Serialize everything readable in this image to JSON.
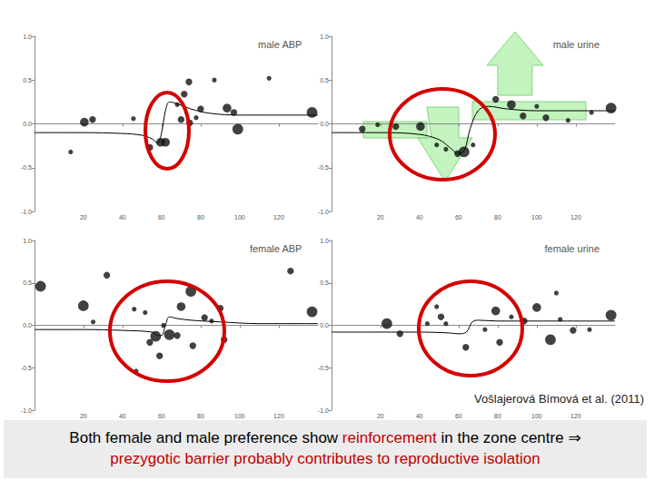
{
  "chart_data": [
    {
      "type": "scatter",
      "title": "male ABP",
      "xlim": [
        -5,
        140
      ],
      "xticks": [
        20,
        40,
        60,
        80,
        100,
        120
      ],
      "ylim": [
        -1,
        1
      ],
      "yticks": [
        {
          "value": -1,
          "label": "-1.0"
        },
        -0.5,
        {
          "value": 0,
          "label": "0.0"
        },
        0.5,
        {
          "value": 1,
          "label": "1.0"
        }
      ],
      "grid": false,
      "series": [
        {
          "type": "scatter",
          "color": "#111111",
          "x": [
            20.5,
            24.7,
            13.5,
            45.6,
            54,
            59.5,
            62,
            71.6,
            74,
            68,
            70,
            80,
            87,
            93.5,
            99,
            97,
            115,
            137,
            77.7,
            74.4
          ],
          "values": [
            0.02,
            0.05,
            -0.32,
            0.06,
            -0.27,
            -0.21,
            -0.21,
            0.34,
            0.48,
            0.22,
            0.05,
            0.17,
            0.5,
            0.18,
            -0.06,
            0.13,
            0.52,
            0.13,
            0.07,
            0.01
          ],
          "sizes": [
            3,
            2,
            1,
            1,
            2,
            3,
            3,
            2,
            2,
            1,
            2,
            2,
            1,
            3,
            4,
            2,
            1,
            4,
            1,
            2
          ]
        },
        {
          "type": "line",
          "color": "#000000",
          "x": [
            -5,
            20,
            40,
            50,
            55,
            58,
            60,
            62,
            64,
            68,
            75,
            85,
            100,
            115,
            140
          ],
          "values": [
            -0.1,
            -0.1,
            -0.11,
            -0.13,
            -0.17,
            -0.22,
            -0.1,
            0.15,
            0.25,
            0.23,
            0.17,
            0.12,
            0.1,
            0.1,
            0.1
          ]
        }
      ]
    },
    {
      "type": "scatter",
      "title": "male urine",
      "xlim": [
        -5,
        140
      ],
      "xticks": [
        20,
        40,
        60,
        80,
        100,
        120
      ],
      "ylim": [
        -1,
        1
      ],
      "yticks": [
        {
          "value": -1,
          "label": "-1.0"
        },
        -0.5,
        {
          "value": 0,
          "label": "0.0"
        },
        0.5,
        {
          "value": 1,
          "label": "1.0"
        }
      ],
      "grid": false,
      "series": [
        {
          "type": "scatter",
          "color": "#111111",
          "x": [
            10.7,
            18.6,
            27.9,
            40.5,
            48.8,
            53.5,
            59.5,
            62.8,
            67.4,
            79,
            87,
            93,
            100,
            104.7,
            116,
            128,
            138
          ],
          "values": [
            -0.06,
            -0.01,
            -0.03,
            -0.03,
            -0.24,
            -0.29,
            -0.34,
            -0.32,
            -0.24,
            0.28,
            0.22,
            0.09,
            0.2,
            0.07,
            0.04,
            0.13,
            0.18
          ],
          "sizes": [
            2,
            1,
            2,
            3,
            1,
            1,
            2,
            4,
            1,
            2,
            3,
            2,
            1,
            2,
            1,
            1,
            4
          ]
        },
        {
          "type": "line",
          "color": "#000000",
          "x": [
            -5,
            20,
            40,
            50,
            55,
            60,
            63,
            66,
            70,
            75,
            85,
            100,
            120,
            140
          ],
          "values": [
            -0.1,
            -0.1,
            -0.12,
            -0.18,
            -0.26,
            -0.34,
            -0.3,
            -0.05,
            0.15,
            0.2,
            0.17,
            0.15,
            0.15,
            0.15
          ]
        }
      ]
    },
    {
      "type": "scatter",
      "title": "female ABP",
      "xlim": [
        -5,
        140
      ],
      "xticks": [
        20,
        40,
        60,
        80,
        100,
        120
      ],
      "ylim": [
        -1,
        1
      ],
      "yticks": [
        {
          "value": -1,
          "label": "-1.0"
        },
        -0.5,
        {
          "value": 0,
          "label": "0.0"
        },
        0.5,
        {
          "value": 1,
          "label": "1.0"
        }
      ],
      "grid": false,
      "series": [
        {
          "type": "scatter",
          "color": "#111111",
          "x": [
            -1.9,
            20,
            25,
            32,
            46,
            51.6,
            54,
            59,
            57,
            64,
            68,
            76,
            70,
            75,
            82,
            92,
            85.6,
            90,
            126,
            137,
            47,
            61
          ],
          "values": [
            0.46,
            0.23,
            0.04,
            0.59,
            0.19,
            0.15,
            -0.2,
            -0.36,
            -0.13,
            -0.11,
            -0.12,
            -0.24,
            0.22,
            0.4,
            0.09,
            -0.17,
            0.05,
            0.2,
            0.64,
            0.16,
            -0.54,
            0
          ],
          "sizes": [
            4,
            4,
            1,
            2,
            1,
            1,
            2,
            2,
            4,
            4,
            2,
            2,
            3,
            4,
            2,
            2,
            1,
            2,
            2,
            4,
            1,
            1
          ]
        },
        {
          "type": "line",
          "color": "#000000",
          "x": [
            -5,
            20,
            40,
            55,
            58,
            60,
            62,
            64,
            68,
            75,
            90,
            110,
            140
          ],
          "values": [
            -0.05,
            -0.05,
            -0.06,
            -0.08,
            -0.12,
            -0.12,
            0,
            0.1,
            0.08,
            0.06,
            0.04,
            0.02,
            0.02
          ]
        }
      ]
    },
    {
      "type": "scatter",
      "title": "female urine",
      "xlim": [
        -5,
        140
      ],
      "xticks": [
        20,
        40,
        60,
        80,
        100,
        120
      ],
      "ylim": [
        -1,
        1
      ],
      "yticks": [
        {
          "value": -1,
          "label": "-1.0"
        },
        -0.5,
        {
          "value": 0,
          "label": "0.0"
        },
        0.5,
        {
          "value": 1,
          "label": "1.0"
        }
      ],
      "grid": false,
      "series": [
        {
          "type": "scatter",
          "color": "#111111",
          "x": [
            23.3,
            30,
            51,
            53.5,
            63.7,
            73.5,
            79,
            81,
            87,
            93.5,
            100,
            107,
            118.6,
            127,
            138,
            110,
            48.8,
            112,
            44
          ],
          "values": [
            0.02,
            -0.1,
            0.1,
            0.02,
            -0.26,
            -0.05,
            0.17,
            -0.2,
            0.1,
            0.05,
            0.21,
            -0.17,
            -0.06,
            -0.05,
            0.12,
            0.38,
            0.22,
            0.07,
            0.02
          ],
          "sizes": [
            4,
            2,
            2,
            1,
            2,
            1,
            3,
            2,
            1,
            2,
            3,
            4,
            2,
            1,
            4,
            1,
            1,
            1,
            1
          ]
        },
        {
          "type": "line",
          "color": "#000000",
          "x": [
            -5,
            20,
            40,
            55,
            60,
            64,
            67,
            70,
            80,
            100,
            140
          ],
          "values": [
            -0.08,
            -0.08,
            -0.08,
            -0.09,
            -0.1,
            -0.08,
            0.04,
            0.06,
            0.05,
            0.05,
            0.05
          ]
        }
      ]
    }
  ],
  "citation": "Vošlajerová Bímová et al. (2011)",
  "caption": [
    [
      {
        "text": "Both female and male preference show ",
        "color": "#000000"
      },
      {
        "text": "reinforcement",
        "color": "#c00000"
      },
      {
        "text": " in the zone centre ⇒",
        "color": "#000000"
      }
    ],
    [
      {
        "text": "prezygotic barrier probably contributes to reproductive isolation",
        "color": "#c00000"
      }
    ]
  ]
}
